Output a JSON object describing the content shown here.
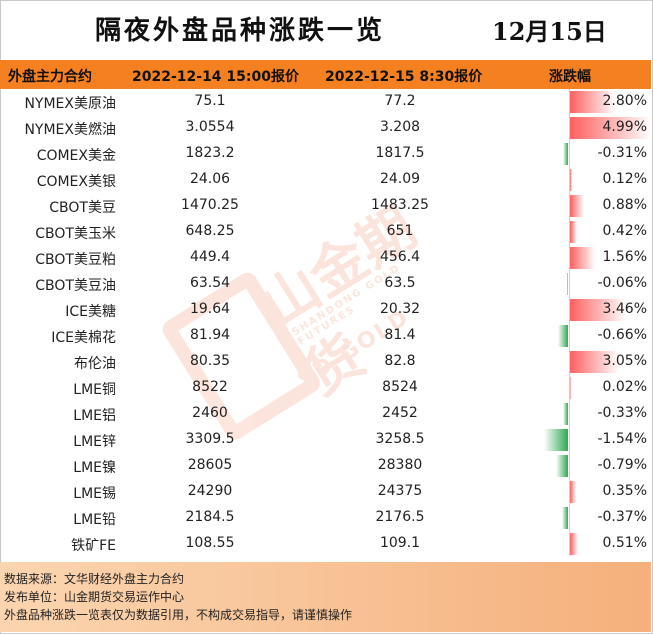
{
  "title": "隔夜外盘品种涨跌一览",
  "date": "12月15日",
  "header": {
    "col1": "外盘主力合约",
    "col2": "2022-12-14 15:00报价",
    "col3": "2022-12-15 8:30报价",
    "col4": "涨跌幅"
  },
  "rows": [
    {
      "name": "NYMEX美原油",
      "prev": "75.1",
      "curr": "77.2",
      "change": "2.80%"
    },
    {
      "name": "NYMEX美燃油",
      "prev": "3.0554",
      "curr": "3.208",
      "change": "4.99%"
    },
    {
      "name": "COMEX美金",
      "prev": "1823.2",
      "curr": "1817.5",
      "change": "-0.31%"
    },
    {
      "name": "COMEX美银",
      "prev": "24.06",
      "curr": "24.09",
      "change": "0.12%"
    },
    {
      "name": "CBOT美豆",
      "prev": "1470.25",
      "curr": "1483.25",
      "change": "0.88%"
    },
    {
      "name": "CBOT美玉米",
      "prev": "648.25",
      "curr": "651",
      "change": "0.42%"
    },
    {
      "name": "CBOT美豆粕",
      "prev": "449.4",
      "curr": "456.4",
      "change": "1.56%"
    },
    {
      "name": "CBOT美豆油",
      "prev": "63.54",
      "curr": "63.5",
      "change": "-0.06%"
    },
    {
      "name": "ICE美糖",
      "prev": "19.64",
      "curr": "20.32",
      "change": "3.46%"
    },
    {
      "name": "ICE美棉花",
      "prev": "81.94",
      "curr": "81.4",
      "change": "-0.66%"
    },
    {
      "name": "布伦油",
      "prev": "80.35",
      "curr": "82.8",
      "change": "3.05%"
    },
    {
      "name": "LME铜",
      "prev": "8522",
      "curr": "8524",
      "change": "0.02%"
    },
    {
      "name": "LME铝",
      "prev": "2460",
      "curr": "2452",
      "change": "-0.33%"
    },
    {
      "name": "LME锌",
      "prev": "3309.5",
      "curr": "3258.5",
      "change": "-1.54%"
    },
    {
      "name": "LME镍",
      "prev": "28605",
      "curr": "28380",
      "change": "-0.79%"
    },
    {
      "name": "LME锡",
      "prev": "24290",
      "curr": "24375",
      "change": "0.35%"
    },
    {
      "name": "LME铅",
      "prev": "2184.5",
      "curr": "2176.5",
      "change": "-0.37%"
    },
    {
      "name": "铁矿FE",
      "prev": "108.55",
      "curr": "109.1",
      "change": "0.51%"
    }
  ],
  "footer": {
    "line1": "数据来源：文华财经外盘主力合约",
    "line2": "发布单位：山金期货交易运作中心",
    "line3": "外盘品种涨跌一览表仅为数据引用，不构成交易指导，请谨慎操作"
  },
  "watermark": {
    "brand": "山金期货",
    "en": "SHANDONG GOLD FUTURES",
    "sd": "SD-GOLD"
  },
  "colors": {
    "header_bg": "#f58020",
    "up_bar": "#ff6060",
    "down_bar": "#33a852"
  }
}
